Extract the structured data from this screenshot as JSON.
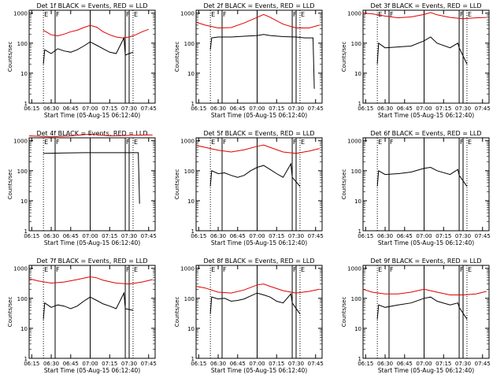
{
  "figure": {
    "xlabel": "Start Time (05-Aug-15 06:12:40)",
    "ylabel": "Counts/sec",
    "x_ticks": [
      "06:15",
      "06:30",
      "06:45",
      "07:00",
      "07:15",
      "07:30",
      "07:45"
    ],
    "y_ticks": [
      "1",
      "10",
      "100",
      "1000"
    ],
    "flag_labels": [
      "E",
      "F",
      "F",
      "E"
    ],
    "colors": {
      "events": "#000000",
      "lld": "#e00000",
      "axes": "#000000"
    }
  },
  "chart_data": [
    {
      "type": "line",
      "title": "Det 1f BLACK = Events, RED = LLD",
      "xlim": [
        "06:13",
        "07:50"
      ],
      "ylim": [
        1,
        1000
      ],
      "yscale": "log",
      "series": [
        {
          "name": "Events",
          "x": [
            "06:24",
            "06:25",
            "06:30",
            "06:35",
            "06:40",
            "06:45",
            "06:50",
            "06:55",
            "07:00",
            "07:05",
            "07:10",
            "07:15",
            "07:20",
            "07:26",
            "07:27",
            "07:30",
            "07:33"
          ],
          "values": [
            20,
            60,
            45,
            65,
            55,
            50,
            60,
            80,
            110,
            85,
            65,
            50,
            45,
            150,
            40,
            45,
            50
          ]
        },
        {
          "name": "LLD",
          "x": [
            "06:24",
            "06:30",
            "06:35",
            "06:40",
            "06:45",
            "06:50",
            "06:55",
            "07:00",
            "07:05",
            "07:10",
            "07:15",
            "07:20",
            "07:25",
            "07:30",
            "07:35",
            "07:40",
            "07:45"
          ],
          "values": [
            270,
            190,
            175,
            200,
            240,
            270,
            330,
            390,
            340,
            240,
            190,
            160,
            150,
            160,
            190,
            240,
            290
          ]
        }
      ],
      "vertical_lines": {
        "dotted": [
          "06:24",
          "07:33"
        ],
        "solid": [
          "06:33",
          "07:00",
          "07:27",
          "07:30"
        ]
      }
    },
    {
      "type": "line",
      "title": "Det 2f BLACK = Events, RED = LLD",
      "xlim": [
        "06:13",
        "07:50"
      ],
      "ylim": [
        1,
        1000
      ],
      "yscale": "log",
      "series": [
        {
          "name": "Events",
          "x": [
            "06:24",
            "06:25",
            "06:30",
            "06:40",
            "06:50",
            "07:00",
            "07:05",
            "07:10",
            "07:20",
            "07:30",
            "07:37",
            "07:43",
            "07:44"
          ],
          "values": [
            60,
            150,
            160,
            160,
            170,
            180,
            195,
            180,
            165,
            160,
            150,
            150,
            3
          ]
        },
        {
          "name": "LLD",
          "x": [
            "06:13",
            "06:20",
            "06:30",
            "06:40",
            "06:50",
            "07:00",
            "07:05",
            "07:10",
            "07:20",
            "07:30",
            "07:40",
            "07:48"
          ],
          "values": [
            500,
            400,
            320,
            330,
            470,
            720,
            900,
            730,
            430,
            320,
            320,
            400
          ]
        }
      ],
      "vertical_lines": {
        "dotted": [
          "06:24",
          "07:33"
        ],
        "solid": [
          "06:33",
          "07:00",
          "07:27",
          "07:30"
        ]
      }
    },
    {
      "type": "line",
      "title": "Det 3f BLACK = Events, RED = LLD",
      "xlim": [
        "06:13",
        "07:50"
      ],
      "ylim": [
        1,
        1000
      ],
      "yscale": "log",
      "series": [
        {
          "name": "Events",
          "x": [
            "06:24",
            "06:25",
            "06:30",
            "06:40",
            "06:50",
            "07:00",
            "07:05",
            "07:10",
            "07:20",
            "07:26",
            "07:27",
            "07:33"
          ],
          "values": [
            20,
            100,
            70,
            75,
            80,
            120,
            160,
            100,
            70,
            100,
            70,
            20
          ]
        },
        {
          "name": "LLD",
          "x": [
            "06:13",
            "06:20",
            "06:30",
            "06:40",
            "06:50",
            "07:00",
            "07:05",
            "07:10",
            "07:20",
            "07:30",
            "07:40",
            "07:48"
          ],
          "values": [
            1000,
            950,
            800,
            700,
            750,
            900,
            1050,
            880,
            720,
            650,
            700,
            720
          ]
        }
      ],
      "vertical_lines": {
        "dotted": [
          "06:24",
          "07:33"
        ],
        "solid": [
          "06:33",
          "07:00",
          "07:27",
          "07:30"
        ]
      }
    },
    {
      "type": "line",
      "title": "Det 4f BLACK = Events, RED = LLD",
      "xlim": [
        "06:13",
        "07:50"
      ],
      "ylim": [
        1,
        1000
      ],
      "yscale": "log",
      "series": [
        {
          "name": "Events",
          "x": [
            "06:24",
            "06:25",
            "06:40",
            "06:55",
            "07:05",
            "07:15",
            "07:25",
            "07:37",
            "07:38"
          ],
          "values": [
            380,
            380,
            390,
            400,
            400,
            400,
            400,
            400,
            8
          ]
        },
        {
          "name": "LLD",
          "x": [
            "06:13",
            "06:30",
            "06:45",
            "07:00",
            "07:15",
            "07:30",
            "07:45",
            "07:48"
          ],
          "values": [
            1450,
            1350,
            1450,
            1650,
            1450,
            1500,
            1550,
            1550
          ]
        }
      ],
      "vertical_lines": {
        "dotted": [
          "06:24",
          "07:33"
        ],
        "solid": [
          "06:33",
          "07:00",
          "07:27",
          "07:30"
        ]
      }
    },
    {
      "type": "line",
      "title": "Det 5f BLACK = Events, RED = LLD",
      "xlim": [
        "06:13",
        "07:50"
      ],
      "ylim": [
        1,
        1000
      ],
      "yscale": "log",
      "series": [
        {
          "name": "Events",
          "x": [
            "06:24",
            "06:25",
            "06:30",
            "06:35",
            "06:40",
            "06:45",
            "06:50",
            "06:55",
            "07:00",
            "07:05",
            "07:10",
            "07:15",
            "07:20",
            "07:26",
            "07:27",
            "07:33"
          ],
          "values": [
            30,
            100,
            80,
            85,
            70,
            60,
            70,
            100,
            130,
            150,
            110,
            80,
            60,
            170,
            60,
            30
          ]
        },
        {
          "name": "LLD",
          "x": [
            "06:13",
            "06:20",
            "06:30",
            "06:40",
            "06:50",
            "07:00",
            "07:05",
            "07:10",
            "07:20",
            "07:30",
            "07:40",
            "07:48"
          ],
          "values": [
            700,
            600,
            480,
            420,
            500,
            650,
            720,
            600,
            420,
            380,
            450,
            550
          ]
        }
      ],
      "vertical_lines": {
        "dotted": [
          "06:24",
          "07:33"
        ],
        "solid": [
          "06:33",
          "07:00",
          "07:27",
          "07:30"
        ]
      }
    },
    {
      "type": "line",
      "title": "Det 6f BLACK = Events, RED = LLD",
      "xlim": [
        "06:13",
        "07:50"
      ],
      "ylim": [
        1,
        1000
      ],
      "yscale": "log",
      "series": [
        {
          "name": "Events",
          "x": [
            "06:24",
            "06:25",
            "06:30",
            "06:40",
            "06:50",
            "07:00",
            "07:05",
            "07:10",
            "07:20",
            "07:26",
            "07:27",
            "07:33"
          ],
          "values": [
            30,
            100,
            75,
            80,
            90,
            120,
            130,
            100,
            75,
            110,
            70,
            30
          ]
        }
      ],
      "vertical_lines": {
        "dotted": [
          "06:24",
          "07:33"
        ],
        "solid": [
          "06:33",
          "07:00",
          "07:27",
          "07:30"
        ]
      }
    },
    {
      "type": "line",
      "title": "Det 7f BLACK = Events, RED = LLD",
      "xlim": [
        "06:13",
        "07:50"
      ],
      "ylim": [
        1,
        1000
      ],
      "yscale": "log",
      "series": [
        {
          "name": "Events",
          "x": [
            "06:24",
            "06:25",
            "06:30",
            "06:35",
            "06:40",
            "06:45",
            "06:50",
            "06:55",
            "07:00",
            "07:05",
            "07:10",
            "07:15",
            "07:20",
            "07:26",
            "07:27",
            "07:33"
          ],
          "values": [
            20,
            70,
            50,
            60,
            55,
            45,
            55,
            80,
            110,
            85,
            65,
            55,
            45,
            150,
            45,
            40
          ]
        },
        {
          "name": "LLD",
          "x": [
            "06:13",
            "06:20",
            "06:30",
            "06:40",
            "06:50",
            "07:00",
            "07:05",
            "07:10",
            "07:20",
            "07:30",
            "07:40",
            "07:48"
          ],
          "values": [
            450,
            380,
            320,
            350,
            420,
            520,
            480,
            400,
            320,
            300,
            350,
            420
          ]
        }
      ],
      "vertical_lines": {
        "dotted": [
          "06:24",
          "07:33"
        ],
        "solid": [
          "06:33",
          "07:00",
          "07:27",
          "07:30"
        ]
      }
    },
    {
      "type": "line",
      "title": "Det 8f BLACK = Events, RED = LLD",
      "xlim": [
        "06:13",
        "07:50"
      ],
      "ylim": [
        1,
        1000
      ],
      "yscale": "log",
      "series": [
        {
          "name": "Events",
          "x": [
            "06:24",
            "06:25",
            "06:30",
            "06:35",
            "06:40",
            "06:45",
            "06:50",
            "06:55",
            "07:00",
            "07:05",
            "07:10",
            "07:15",
            "07:20",
            "07:26",
            "07:27",
            "07:33"
          ],
          "values": [
            30,
            110,
            95,
            100,
            80,
            85,
            95,
            120,
            150,
            130,
            110,
            80,
            70,
            140,
            70,
            30
          ]
        },
        {
          "name": "LLD",
          "x": [
            "06:13",
            "06:20",
            "06:30",
            "06:40",
            "06:50",
            "07:00",
            "07:05",
            "07:10",
            "07:20",
            "07:30",
            "07:40",
            "07:48"
          ],
          "values": [
            250,
            220,
            160,
            150,
            190,
            280,
            300,
            250,
            180,
            150,
            170,
            200
          ]
        }
      ],
      "vertical_lines": {
        "dotted": [
          "06:24",
          "07:33"
        ],
        "solid": [
          "06:33",
          "07:00",
          "07:27",
          "07:30"
        ]
      }
    },
    {
      "type": "line",
      "title": "Det 9f BLACK = Events, RED = LLD",
      "xlim": [
        "06:13",
        "07:50"
      ],
      "ylim": [
        1,
        1000
      ],
      "yscale": "log",
      "series": [
        {
          "name": "Events",
          "x": [
            "06:24",
            "06:25",
            "06:30",
            "06:40",
            "06:50",
            "07:00",
            "07:05",
            "07:10",
            "07:20",
            "07:26",
            "07:27",
            "07:33"
          ],
          "values": [
            20,
            60,
            50,
            60,
            70,
            100,
            110,
            80,
            60,
            70,
            50,
            20
          ]
        },
        {
          "name": "LLD",
          "x": [
            "06:13",
            "06:20",
            "06:30",
            "06:40",
            "06:50",
            "07:00",
            "07:05",
            "07:10",
            "07:20",
            "07:30",
            "07:40",
            "07:48"
          ],
          "values": [
            200,
            160,
            140,
            140,
            160,
            200,
            180,
            160,
            130,
            130,
            140,
            170
          ]
        }
      ],
      "vertical_lines": {
        "dotted": [
          "06:24",
          "07:33"
        ],
        "solid": [
          "06:33",
          "07:00",
          "07:27",
          "07:30"
        ]
      }
    }
  ]
}
